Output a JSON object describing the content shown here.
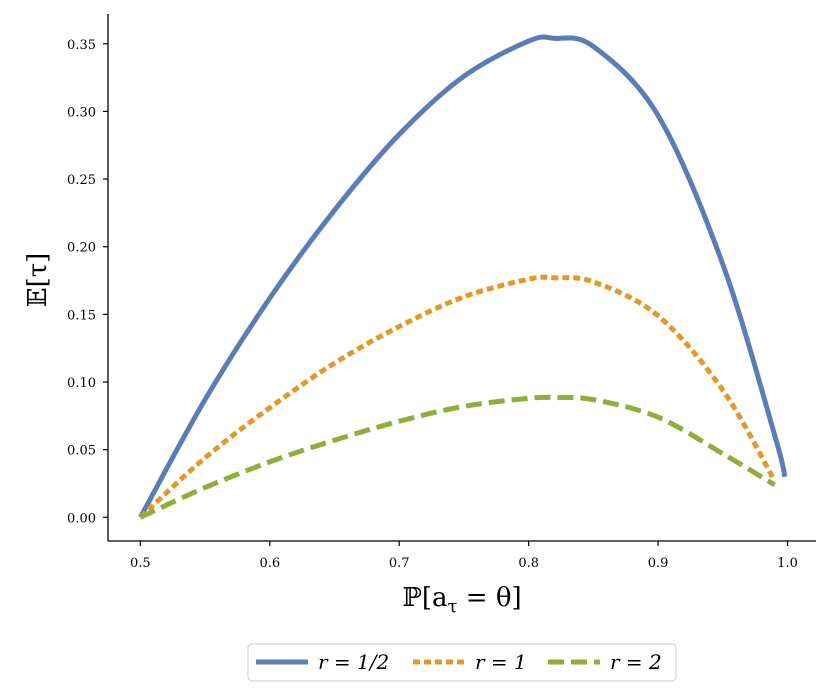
{
  "chart_data": {
    "type": "line",
    "title": "",
    "xlabel": "ℙ[a",
    "xlabel_sub": "τ",
    "xlabel_rest": " = θ]",
    "ylabel": "𝔼[τ]",
    "xlim": [
      0.475,
      1.022
    ],
    "ylim": [
      -0.0175,
      0.372
    ],
    "xticks": [
      0.5,
      0.6,
      0.7,
      0.8,
      0.9,
      1.0
    ],
    "xtick_labels": [
      "0.5",
      "0.6",
      "0.7",
      "0.8",
      "0.9",
      "1.0"
    ],
    "yticks": [
      0.0,
      0.05,
      0.1,
      0.15,
      0.2,
      0.25,
      0.3,
      0.35
    ],
    "ytick_labels": [
      "0.00",
      "0.05",
      "0.10",
      "0.15",
      "0.20",
      "0.25",
      "0.30",
      "0.35"
    ],
    "grid": false,
    "legend_position": "bottom-center, outside plot",
    "series": [
      {
        "name": "r = 1/2",
        "color": "#5b7db5",
        "dash": "solid",
        "x": [
          0.5,
          0.55,
          0.6,
          0.65,
          0.7,
          0.75,
          0.8,
          0.82,
          0.85,
          0.9,
          0.95,
          0.99,
          0.998
        ],
        "y": [
          0.0,
          0.087,
          0.162,
          0.227,
          0.283,
          0.326,
          0.352,
          0.354,
          0.348,
          0.297,
          0.187,
          0.061,
          0.03
        ]
      },
      {
        "name": "r = 1",
        "color": "#e09a2c",
        "dash": "dotted",
        "x": [
          0.5,
          0.55,
          0.6,
          0.65,
          0.7,
          0.75,
          0.8,
          0.82,
          0.85,
          0.9,
          0.95,
          0.99
        ],
        "y": [
          0.0,
          0.044,
          0.081,
          0.114,
          0.141,
          0.163,
          0.176,
          0.177,
          0.174,
          0.149,
          0.094,
          0.027
        ]
      },
      {
        "name": "r = 2",
        "color": "#8fae3a",
        "dash": "dashed",
        "x": [
          0.5,
          0.55,
          0.6,
          0.65,
          0.7,
          0.75,
          0.8,
          0.82,
          0.85,
          0.9,
          0.95,
          0.99
        ],
        "y": [
          0.0,
          0.022,
          0.041,
          0.057,
          0.071,
          0.082,
          0.088,
          0.0885,
          0.087,
          0.074,
          0.047,
          0.024
        ]
      }
    ]
  }
}
